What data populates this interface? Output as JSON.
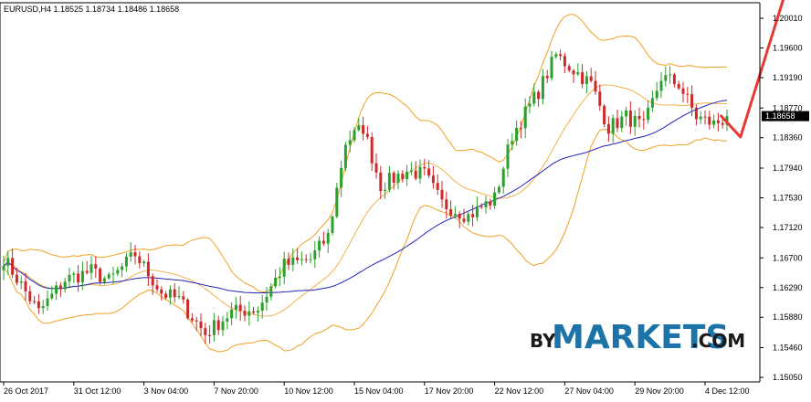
{
  "chart_data": {
    "type": "candlestick",
    "symbol_line": "EURUSD,H4  1.18525 1.18734 1.18486 1.18658",
    "current_price_label": "1.18658",
    "current_price": 1.18658,
    "ylim": [
      1.15,
      1.203
    ],
    "y_ticks": [
      1.2001,
      1.196,
      1.1919,
      1.1877,
      1.1836,
      1.1794,
      1.1753,
      1.1712,
      1.167,
      1.1629,
      1.1588,
      1.1546,
      1.1505
    ],
    "y_tick_labels": [
      "1.20010",
      "1.19600",
      "1.19190",
      "1.18770",
      "1.18360",
      "1.17940",
      "1.17530",
      "1.17120",
      "1.16700",
      "1.16290",
      "1.15880",
      "1.15460",
      "1.15050"
    ],
    "x_tick_labels": [
      "26 Oct 2017",
      "31 Oct 12:00",
      "3 Nov 04:00",
      "7 Nov 20:00",
      "10 Nov 12:00",
      "15 Nov 04:00",
      "17 Nov 20:00",
      "22 Nov 12:00",
      "27 Nov 04:00",
      "29 Nov 20:00",
      "4 Dec 12:00"
    ],
    "x_tick_index": [
      0,
      16,
      32,
      48,
      64,
      80,
      96,
      112,
      128,
      144,
      160
    ],
    "bar_count": 166,
    "anchors": [
      [
        0,
        1.167
      ],
      [
        8,
        1.1595
      ],
      [
        14,
        1.164
      ],
      [
        20,
        1.1652
      ],
      [
        24,
        1.1638
      ],
      [
        30,
        1.1675
      ],
      [
        36,
        1.1622
      ],
      [
        40,
        1.1612
      ],
      [
        46,
        1.1565
      ],
      [
        52,
        1.1595
      ],
      [
        58,
        1.16
      ],
      [
        64,
        1.166
      ],
      [
        70,
        1.1668
      ],
      [
        74,
        1.17
      ],
      [
        78,
        1.183
      ],
      [
        82,
        1.185
      ],
      [
        86,
        1.177
      ],
      [
        92,
        1.179
      ],
      [
        96,
        1.1785
      ],
      [
        100,
        1.1745
      ],
      [
        106,
        1.1728
      ],
      [
        112,
        1.1752
      ],
      [
        116,
        1.184
      ],
      [
        122,
        1.19
      ],
      [
        126,
        1.195
      ],
      [
        130,
        1.193
      ],
      [
        134,
        1.191
      ],
      [
        138,
        1.185
      ],
      [
        142,
        1.1865
      ],
      [
        146,
        1.185
      ],
      [
        150,
        1.192
      ],
      [
        154,
        1.191
      ],
      [
        158,
        1.1865
      ],
      [
        162,
        1.1855
      ],
      [
        166,
        1.1866
      ]
    ],
    "series": [
      {
        "name": "MA 20",
        "color": "#2222bb"
      },
      {
        "name": "Bollinger Bands",
        "color": "#f0a020"
      }
    ],
    "colors": {
      "bull": "#2ca02c",
      "bear": "#cc2a2a",
      "arrow": "#e53935",
      "grid": "none",
      "axis": "#000000"
    },
    "forecast_arrow": {
      "from_index": 162,
      "from_price": 1.1866,
      "dip_index": 166,
      "dip_price": 1.1837,
      "to_index": 176,
      "to_price": 1.198
    },
    "watermark": {
      "by": "BY",
      "main": "MARKETS",
      "com": ".COM"
    }
  }
}
